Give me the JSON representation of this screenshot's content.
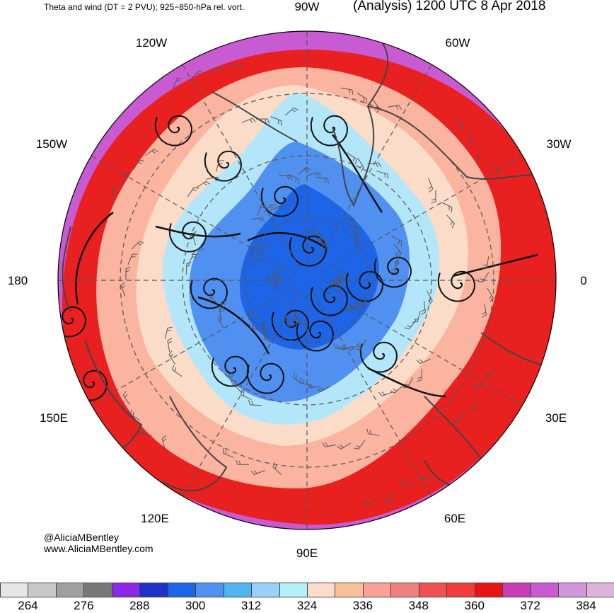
{
  "header": {
    "left_title": "Theta and wind (DT = 2 PVU); 925−850-hPa rel. vort.",
    "right_title": "(Analysis) 1200 UTC 8 Apr 2018"
  },
  "longitude_labels": {
    "n90w": "90W",
    "n60w": "60W",
    "n120w": "120W",
    "n30w": "30W",
    "n150w": "150W",
    "n0": "0",
    "n180": "180",
    "n30e": "30E",
    "n150e": "150E",
    "n60e": "60E",
    "n120e": "120E",
    "n90e": "90E"
  },
  "credits": {
    "handle": "@AliciaMBentley",
    "website": "www.AliciaMBentley.com"
  },
  "colorbar": {
    "colors": [
      "#e6e6e6",
      "#c8c8c8",
      "#a0a0a0",
      "#787878",
      "#8c28e6",
      "#1e32c8",
      "#1e64e6",
      "#5090f0",
      "#50b4f0",
      "#96d2fa",
      "#b4f0fa",
      "#fadcc8",
      "#fac09a",
      "#faa096",
      "#f08080",
      "#f05050",
      "#f03c3c",
      "#e61414",
      "#c83cb4",
      "#c85ad2",
      "#d296dc",
      "#dcb4dc"
    ],
    "labels": [
      "264",
      "276",
      "288",
      "300",
      "312",
      "324",
      "336",
      "348",
      "360",
      "372",
      "384"
    ]
  },
  "map_colors": {
    "ocean_outer": "#c85ad2",
    "warm_red": "#e82020",
    "salmon": "#fab4a0",
    "peach": "#fadcc8",
    "light_blue": "#b4e6fa",
    "mid_blue": "#5090f0",
    "deep_blue": "#1e64e6",
    "coast": "#444444",
    "grid": "#555555"
  }
}
